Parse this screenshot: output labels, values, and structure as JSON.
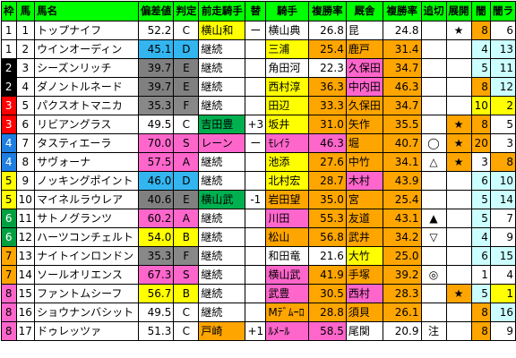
{
  "columns": [
    "枠",
    "馬",
    "馬名",
    "偏差値",
    "判定",
    "前走騎手",
    "替",
    "騎手",
    "複勝率",
    "厩舎",
    "複勝率",
    "追切",
    "展開",
    "闇",
    "闇ラ"
  ],
  "colors": {
    "header": "#00ff00",
    "frame": [
      "#ffffff",
      "#000000",
      "#808080",
      "#ff0000",
      "#1f7fe0",
      "#ffff00",
      "#00a040",
      "#ffa500",
      "#ff66cc"
    ],
    "ratingA": "#ff66cc",
    "ratingB": "#ffff00",
    "ratingC": "#ffffff",
    "ratingD": "#33b5f0",
    "ratingF": "#888888",
    "jockeyChanged": "#ffff00",
    "prevJockeyChanged": "#00b050",
    "rate": "#ffa500",
    "highlight": "#ff66cc",
    "cyan": "#ccffff",
    "yellow": "#ffff00"
  },
  "rows": [
    {
      "waku": "1",
      "wakuColor": "#ffffff",
      "wakuText": "#000000",
      "uma": "1",
      "name": "トップナイフ",
      "hensa": "52.2",
      "grade": "C",
      "gradeColor": "#ffffff",
      "prev": "横山和",
      "prevColor": "#ffff00",
      "kae": "ー",
      "jockey": "横山典",
      "jockeyColor": "#ffffff",
      "jrate": "26.8",
      "jrateColor": "#ffffff",
      "stable": "昆",
      "stableColor": "#ffffff",
      "srate": "24.8",
      "srateColor": "#ffffff",
      "oikiri": "",
      "tenkai": "★",
      "tenkaiColor": "#ffffff",
      "yami": "8",
      "yamiColor": "#ffa500",
      "yamiRa": "6",
      "yamiRaColor": "#ffffff"
    },
    {
      "waku": "1",
      "wakuColor": "#ffffff",
      "wakuText": "#000000",
      "uma": "2",
      "name": "ウインオーディン",
      "hensa": "45.1",
      "grade": "D",
      "gradeColor": "#33b5f0",
      "prev": "継続",
      "prevColor": "#ffffff",
      "kae": "",
      "jockey": "三浦",
      "jockeyColor": "#ffff00",
      "jrate": "25.4",
      "jrateColor": "#ffa500",
      "stable": "鹿戸",
      "stableColor": "#ffa500",
      "srate": "31.4",
      "srateColor": "#ffa500",
      "oikiri": "",
      "tenkai": "",
      "tenkaiColor": "#ffffff",
      "yami": "4",
      "yamiColor": "#ccffff",
      "yamiRa": "13",
      "yamiRaColor": "#ccffff"
    },
    {
      "waku": "2",
      "wakuColor": "#000000",
      "wakuText": "#ffffff",
      "uma": "3",
      "name": "シーズンリッチ",
      "hensa": "39.7",
      "grade": "E",
      "gradeColor": "#808080",
      "prev": "継続",
      "prevColor": "#ffffff",
      "kae": "",
      "jockey": "角田河",
      "jockeyColor": "#ffffff",
      "jrate": "22.3",
      "jrateColor": "#ffffff",
      "stable": "久保田",
      "stableColor": "#ff66cc",
      "srate": "34.7",
      "srateColor": "#ffa500",
      "oikiri": "",
      "tenkai": "",
      "tenkaiColor": "#ffffff",
      "yami": "5",
      "yamiColor": "#ccffff",
      "yamiRa": "11",
      "yamiRaColor": "#ccffff"
    },
    {
      "waku": "2",
      "wakuColor": "#000000",
      "wakuText": "#ffffff",
      "uma": "4",
      "name": "ダノントルネード",
      "hensa": "39.7",
      "grade": "E",
      "gradeColor": "#808080",
      "prev": "継続",
      "prevColor": "#ffffff",
      "kae": "",
      "jockey": "西村淳",
      "jockeyColor": "#ffff00",
      "jrate": "36.3",
      "jrateColor": "#ffa500",
      "stable": "中内田",
      "stableColor": "#ff66cc",
      "srate": "46.3",
      "srateColor": "#ffa500",
      "oikiri": "",
      "tenkai": "",
      "tenkaiColor": "#ffffff",
      "yami": "8",
      "yamiColor": "#ffa500",
      "yamiRa": "12",
      "yamiRaColor": "#ccffff"
    },
    {
      "waku": "3",
      "wakuColor": "#ff0000",
      "wakuText": "#ffffff",
      "uma": "5",
      "name": "パクスオトマニカ",
      "hensa": "35.3",
      "grade": "F",
      "gradeColor": "#888888",
      "prev": "継続",
      "prevColor": "#ffffff",
      "kae": "",
      "jockey": "田辺",
      "jockeyColor": "#ffff00",
      "jrate": "33.3",
      "jrateColor": "#ffa500",
      "stable": "久保田",
      "stableColor": "#ffa500",
      "srate": "34.7",
      "srateColor": "#ffa500",
      "oikiri": "",
      "tenkai": "",
      "tenkaiColor": "#ffffff",
      "yami": "10",
      "yamiColor": "#ffff00",
      "yamiRa": "2",
      "yamiRaColor": "#ffff00"
    },
    {
      "waku": "3",
      "wakuColor": "#ff0000",
      "wakuText": "#ffffff",
      "uma": "6",
      "name": "リビアングラス",
      "hensa": "49.5",
      "grade": "C",
      "gradeColor": "#ffffff",
      "prev": "吉田豊",
      "prevColor": "#00b050",
      "kae": "+3",
      "jockey": "坂井",
      "jockeyColor": "#ffff00",
      "jrate": "31.0",
      "jrateColor": "#ffa500",
      "stable": "矢作",
      "stableColor": "#ffa500",
      "srate": "35.5",
      "srateColor": "#ffa500",
      "oikiri": "",
      "tenkai": "★",
      "tenkaiColor": "#ffa500",
      "yami": "8",
      "yamiColor": "#ffa500",
      "yamiRa": "5",
      "yamiRaColor": "#ffffff"
    },
    {
      "waku": "4",
      "wakuColor": "#1f7fe0",
      "wakuText": "#ffffff",
      "uma": "7",
      "name": "タスティエーラ",
      "hensa": "70.0",
      "grade": "S",
      "gradeColor": "#ff66cc",
      "prev": "レーン",
      "prevColor": "#ff66cc",
      "kae": "ー",
      "jockey": "ﾓﾚｲﾗ",
      "jockeyColor": "#ff66cc",
      "jrate": "46.3",
      "jrateColor": "#ff66cc",
      "stable": "堀",
      "stableColor": "#ffa500",
      "srate": "40.7",
      "srateColor": "#ffa500",
      "oikiri": "◯",
      "tenkai": "★",
      "tenkaiColor": "#ffa500",
      "yami": "20",
      "yamiColor": "#ffa500",
      "yamiRa": "3",
      "yamiRaColor": "#ffffff"
    },
    {
      "waku": "4",
      "wakuColor": "#1f7fe0",
      "wakuText": "#ffffff",
      "uma": "8",
      "name": "サヴォーナ",
      "hensa": "57.5",
      "grade": "A",
      "gradeColor": "#ff66cc",
      "prev": "継続",
      "prevColor": "#ffffff",
      "kae": "",
      "jockey": "池添",
      "jockeyColor": "#ffff00",
      "jrate": "27.6",
      "jrateColor": "#ffa500",
      "stable": "中竹",
      "stableColor": "#ffa500",
      "srate": "34.1",
      "srateColor": "#ffa500",
      "oikiri": "△",
      "tenkai": "★",
      "tenkaiColor": "#ffa500",
      "yami": "3",
      "yamiColor": "#ffffff",
      "yamiRa": "8",
      "yamiRaColor": "#ffa500"
    },
    {
      "waku": "5",
      "wakuColor": "#ffff00",
      "wakuText": "#000000",
      "uma": "9",
      "name": "ノッキングポイント",
      "hensa": "46.0",
      "grade": "D",
      "gradeColor": "#33b5f0",
      "prev": "継続",
      "prevColor": "#ffffff",
      "kae": "",
      "jockey": "北村宏",
      "jockeyColor": "#ffff00",
      "jrate": "28.7",
      "jrateColor": "#ffa500",
      "stable": "木村",
      "stableColor": "#ff66cc",
      "srate": "43.9",
      "srateColor": "#ffa500",
      "oikiri": "",
      "tenkai": "",
      "tenkaiColor": "#ffffff",
      "yami": "6",
      "yamiColor": "#ccffff",
      "yamiRa": "10",
      "yamiRaColor": "#ccffff"
    },
    {
      "waku": "5",
      "wakuColor": "#ffff00",
      "wakuText": "#000000",
      "uma": "10",
      "name": "マイネルラウレア",
      "hensa": "40.6",
      "grade": "E",
      "gradeColor": "#808080",
      "prev": "横山武",
      "prevColor": "#00b050",
      "kae": "-1",
      "jockey": "岩田望",
      "jockeyColor": "#ffa500",
      "jrate": "35.0",
      "jrateColor": "#ffa500",
      "stable": "宮",
      "stableColor": "#ffa500",
      "srate": "25.4",
      "srateColor": "#ffa500",
      "oikiri": "",
      "tenkai": "",
      "tenkaiColor": "#ffffff",
      "yami": "5",
      "yamiColor": "#ccffff",
      "yamiRa": "14",
      "yamiRaColor": "#ccffff"
    },
    {
      "waku": "6",
      "wakuColor": "#00a040",
      "wakuText": "#ffffff",
      "uma": "11",
      "name": "サトノグランツ",
      "hensa": "60.2",
      "grade": "A",
      "gradeColor": "#ff66cc",
      "prev": "継続",
      "prevColor": "#ffffff",
      "kae": "",
      "jockey": "川田",
      "jockeyColor": "#ff66cc",
      "jrate": "55.3",
      "jrateColor": "#ffa500",
      "stable": "友道",
      "stableColor": "#ffa500",
      "srate": "43.1",
      "srateColor": "#ffa500",
      "oikiri": "▲",
      "tenkai": "",
      "tenkaiColor": "#ffffff",
      "yami": "5",
      "yamiColor": "#ccffff",
      "yamiRa": "7",
      "yamiRaColor": "#ffffff"
    },
    {
      "waku": "6",
      "wakuColor": "#00a040",
      "wakuText": "#ffffff",
      "uma": "12",
      "name": "ハーツコンチェルト",
      "hensa": "54.0",
      "grade": "B",
      "gradeColor": "#ffff00",
      "prev": "継続",
      "prevColor": "#ffffff",
      "kae": "",
      "jockey": "松山",
      "jockeyColor": "#ffa500",
      "jrate": "56.8",
      "jrateColor": "#ffa500",
      "stable": "武井",
      "stableColor": "#ffa500",
      "srate": "34.2",
      "srateColor": "#ffa500",
      "oikiri": "▽",
      "tenkai": "",
      "tenkaiColor": "#ffffff",
      "yami": "4",
      "yamiColor": "#ccffff",
      "yamiRa": "9",
      "yamiRaColor": "#ffffff"
    },
    {
      "waku": "7",
      "wakuColor": "#ffa500",
      "wakuText": "#000000",
      "uma": "13",
      "name": "ナイトインロンドン",
      "hensa": "35.3",
      "grade": "F",
      "gradeColor": "#888888",
      "prev": "継続",
      "prevColor": "#ffffff",
      "kae": "",
      "jockey": "和田竜",
      "jockeyColor": "#ffffff",
      "jrate": "21.6",
      "jrateColor": "#ffffff",
      "stable": "大竹",
      "stableColor": "#ffff00",
      "srate": "25.0",
      "srateColor": "#ffa500",
      "oikiri": "",
      "tenkai": "",
      "tenkaiColor": "#ffffff",
      "yami": "6",
      "yamiColor": "#ccffff",
      "yamiRa": "15",
      "yamiRaColor": "#ccffff"
    },
    {
      "waku": "7",
      "wakuColor": "#ffa500",
      "wakuText": "#000000",
      "uma": "14",
      "name": "ソールオリエンス",
      "hensa": "67.3",
      "grade": "S",
      "gradeColor": "#ff66cc",
      "prev": "継続",
      "prevColor": "#ffffff",
      "kae": "",
      "jockey": "横山武",
      "jockeyColor": "#ff66cc",
      "jrate": "41.9",
      "jrateColor": "#ffa500",
      "stable": "手塚",
      "stableColor": "#ffa500",
      "srate": "39.2",
      "srateColor": "#ffa500",
      "oikiri": "◎",
      "tenkai": "",
      "tenkaiColor": "#ffffff",
      "yami": "1",
      "yamiColor": "#ffffff",
      "yamiRa": "4",
      "yamiRaColor": "#ffffff"
    },
    {
      "waku": "8",
      "wakuColor": "#ff66cc",
      "wakuText": "#000000",
      "uma": "15",
      "name": "ファントムシーフ",
      "hensa": "56.7",
      "grade": "B",
      "gradeColor": "#ffff00",
      "prev": "継続",
      "prevColor": "#ffffff",
      "kae": "",
      "jockey": "武豊",
      "jockeyColor": "#ff66cc",
      "jrate": "30.5",
      "jrateColor": "#ffa500",
      "stable": "西村",
      "stableColor": "#ff66cc",
      "srate": "28.3",
      "srateColor": "#ffa500",
      "oikiri": "",
      "tenkai": "★",
      "tenkaiColor": "#ffa500",
      "yami": "5",
      "yamiColor": "#ccffff",
      "yamiRa": "1",
      "yamiRaColor": "#ffff00"
    },
    {
      "waku": "8",
      "wakuColor": "#ff66cc",
      "wakuText": "#000000",
      "uma": "16",
      "name": "ショウナンバシット",
      "hensa": "49.5",
      "grade": "C",
      "gradeColor": "#ffffff",
      "prev": "継続",
      "prevColor": "#ffffff",
      "kae": "",
      "jockey": "Mﾃﾞﾑｰﾛ",
      "jockeyColor": "#ffa500",
      "jrate": "28.8",
      "jrateColor": "#ffa500",
      "stable": "須貝",
      "stableColor": "#ffa500",
      "srate": "26.1",
      "srateColor": "#ffa500",
      "oikiri": "",
      "tenkai": "",
      "tenkaiColor": "#ffffff",
      "yami": "8",
      "yamiColor": "#ffa500",
      "yamiRa": "16",
      "yamiRaColor": "#ccffff"
    },
    {
      "waku": "8",
      "wakuColor": "#ff66cc",
      "wakuText": "#000000",
      "uma": "17",
      "name": "ドゥレッツァ",
      "hensa": "51.3",
      "grade": "C",
      "gradeColor": "#ffffff",
      "prev": "戸崎",
      "prevColor": "#ffa500",
      "kae": "+1",
      "jockey": "ﾙﾒｰﾙ",
      "jockeyColor": "#ff66cc",
      "jrate": "58.5",
      "jrateColor": "#ff66cc",
      "stable": "尾関",
      "stableColor": "#ffffff",
      "srate": "20.9",
      "srateColor": "#ffffff",
      "oikiri": "注",
      "tenkai": "",
      "tenkaiColor": "#ffffff",
      "yami": "8",
      "yamiColor": "#ffa500",
      "yamiRa": "9",
      "yamiRaColor": "#ffffff"
    }
  ]
}
